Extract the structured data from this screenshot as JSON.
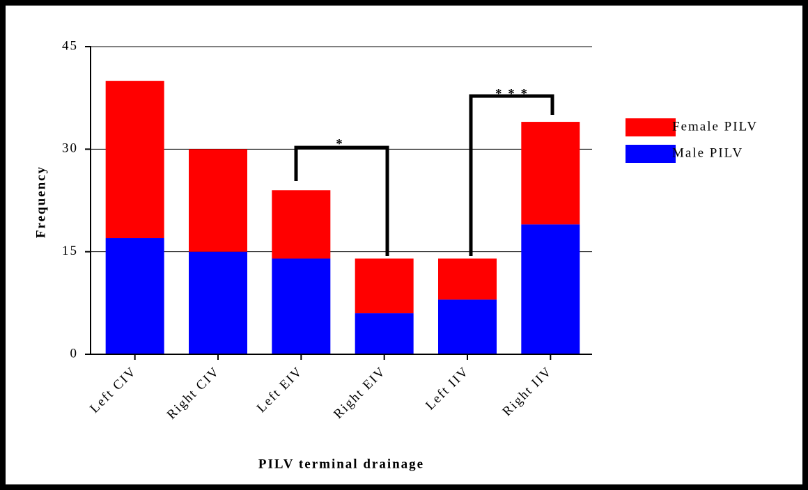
{
  "chart_data": {
    "type": "stacked_bar",
    "y_label": "Frequency",
    "x_label": "PILV terminal drainage",
    "categories": [
      "Left CIV",
      "Right CIV",
      "Left EIV",
      "Right EIV",
      "Left IIV",
      "Right IIV"
    ],
    "series": [
      {
        "name": "Male PILV",
        "color": "#0000ff",
        "values": [
          17,
          15,
          14,
          6,
          8,
          19
        ]
      },
      {
        "name": "Female PILV",
        "color": "#ff0000",
        "values": [
          23,
          15,
          10,
          8,
          6,
          15
        ]
      }
    ],
    "ylim": [
      0,
      45
    ],
    "yticks": [
      0,
      15,
      30,
      45
    ],
    "grid": true,
    "annotations": [
      "*",
      "* * *"
    ]
  }
}
